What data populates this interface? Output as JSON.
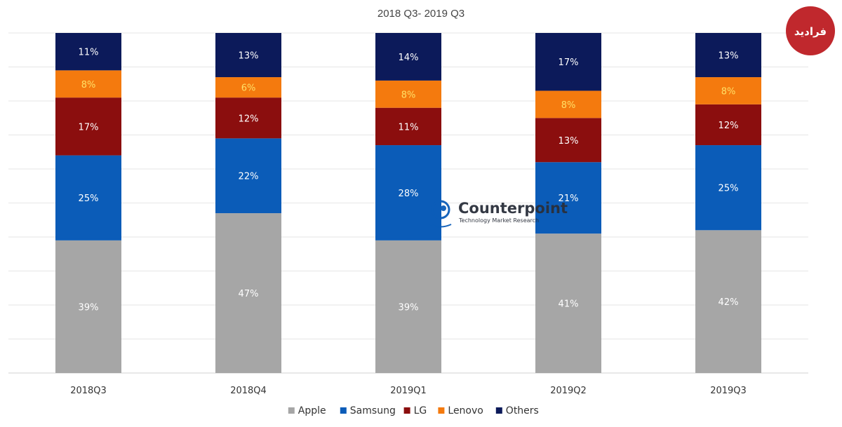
{
  "chart_data": {
    "type": "bar",
    "stacked": true,
    "title": "2018 Q3- 2019 Q3",
    "xlabel": "",
    "ylabel": "",
    "ylim": [
      0,
      100
    ],
    "grid": true,
    "legend_position": "bottom",
    "categories": [
      "2018Q3",
      "2018Q4",
      "2019Q1",
      "2019Q2",
      "2019Q3"
    ],
    "series": [
      {
        "name": "Apple",
        "color": "#a6a6a6",
        "label_color": "#ffffff",
        "values": [
          39,
          47,
          39,
          41,
          42
        ]
      },
      {
        "name": "Samsung",
        "color": "#0b5cb8",
        "label_color": "#ffffff",
        "values": [
          25,
          22,
          28,
          21,
          25
        ]
      },
      {
        "name": "LG",
        "color": "#8b0e0e",
        "label_color": "#ffffff",
        "values": [
          17,
          12,
          11,
          13,
          12
        ]
      },
      {
        "name": "Lenovo",
        "color": "#f47a0e",
        "label_color": "#ffe066",
        "values": [
          8,
          6,
          8,
          8,
          8
        ]
      },
      {
        "name": "Others",
        "color": "#0c1a5a",
        "label_color": "#ffffff",
        "values": [
          11,
          13,
          14,
          17,
          13
        ]
      }
    ],
    "value_labels": [
      [
        "39%",
        "47%",
        "39%",
        "41%",
        "42%"
      ],
      [
        "25%",
        "22%",
        "28%",
        "21%",
        "25%"
      ],
      [
        "17%",
        "12%",
        "11%",
        "13%",
        "12%"
      ],
      [
        "8%",
        "6%",
        "8%",
        "8%",
        "8%"
      ],
      [
        "11%",
        "13%",
        "14%",
        "17%",
        "13%"
      ]
    ]
  },
  "watermark": {
    "brand": "Counterpoint",
    "tagline": "Technology Market Research",
    "logo_color": "#0b5cb8"
  },
  "badge": {
    "text": "فرادید",
    "color": "#c0282d"
  }
}
